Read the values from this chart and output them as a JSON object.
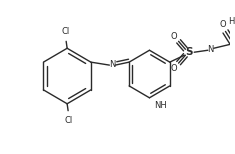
{
  "bg_color": "#ffffff",
  "line_color": "#2a2a2a",
  "lw": 1.0,
  "fs": 6.0,
  "figsize": [
    2.35,
    1.54
  ],
  "dpi": 100,
  "xlim": [
    0,
    235
  ],
  "ylim": [
    0,
    154
  ]
}
